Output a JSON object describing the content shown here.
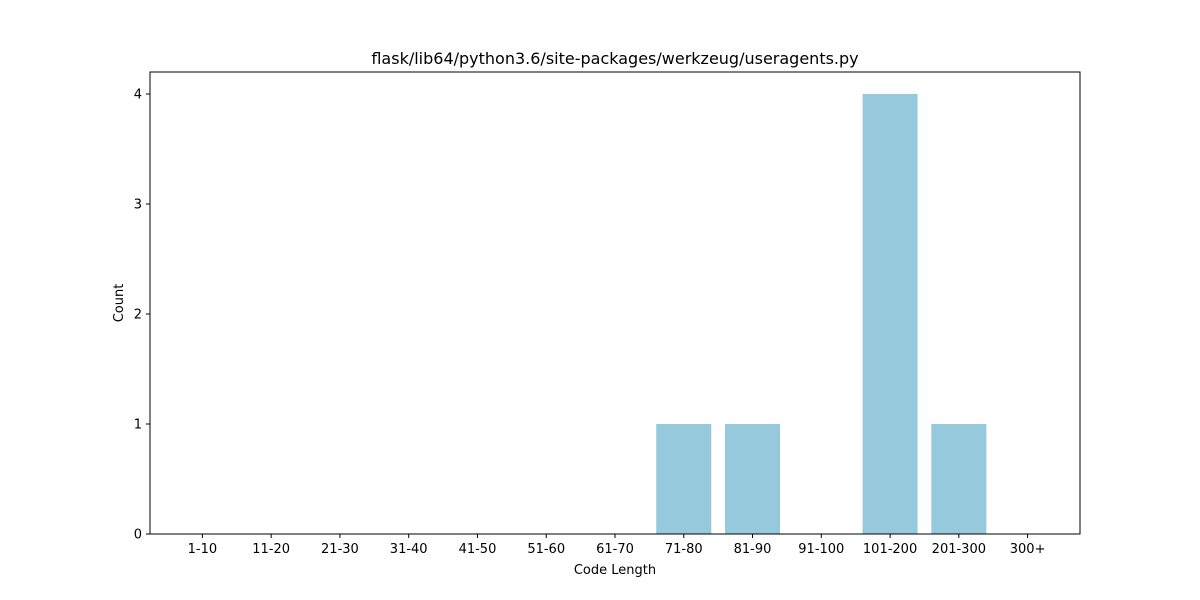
{
  "chart_data": {
    "type": "bar",
    "title": "flask/lib64/python3.6/site-packages/werkzeug/useragents.py",
    "xlabel": "Code Length",
    "ylabel": "Count",
    "categories": [
      "1-10",
      "11-20",
      "21-30",
      "31-40",
      "41-50",
      "51-60",
      "61-70",
      "71-80",
      "81-90",
      "91-100",
      "101-200",
      "201-300",
      "300+"
    ],
    "values": [
      0,
      0,
      0,
      0,
      0,
      0,
      0,
      1,
      1,
      0,
      4,
      1,
      0
    ],
    "yticks": [
      0,
      1,
      2,
      3,
      4
    ],
    "ylim": [
      0,
      4.2
    ],
    "grid": false,
    "bar_color": "#96c9dc"
  }
}
